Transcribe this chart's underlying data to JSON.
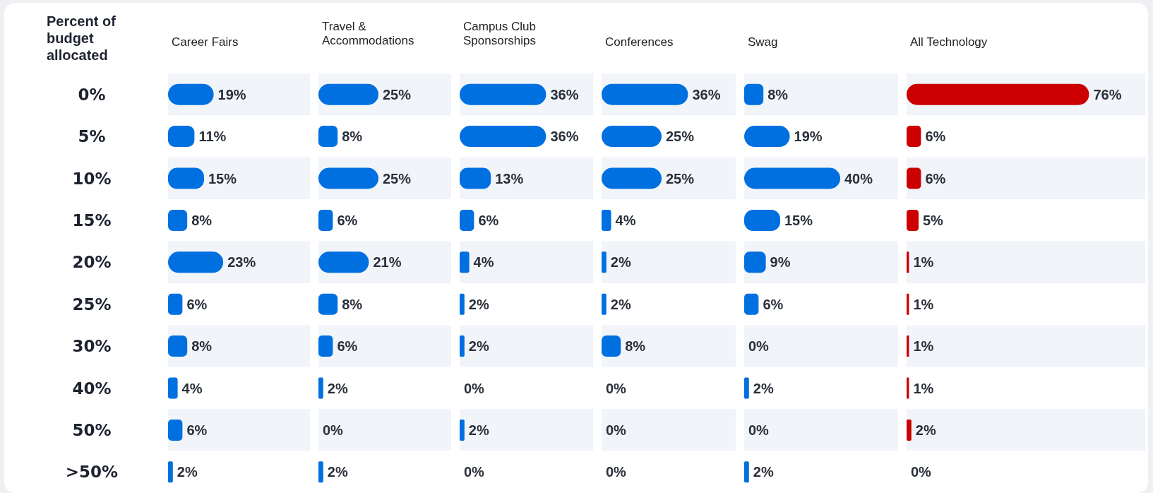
{
  "chart_data": [
    {
      "type": "bar",
      "orientation": "horizontal",
      "title": "Career Fairs",
      "ylabel": "Percent of budget allocated",
      "tick_labels": "y",
      "color": "#0070e0",
      "categories": [
        "0%",
        "5%",
        "10%",
        "15%",
        "20%",
        "25%",
        "30%",
        "40%",
        "50%",
        ">50%"
      ],
      "values": [
        19,
        11,
        15,
        8,
        23,
        6,
        8,
        4,
        6,
        2
      ],
      "value_labels": [
        "19%",
        "11%",
        "15%",
        "8%",
        "23%",
        "6%",
        "8%",
        "4%",
        "6%",
        "2%"
      ]
    },
    {
      "type": "bar",
      "orientation": "horizontal",
      "title": "Travel & Accommodations",
      "tick_labels": false,
      "color": "#0070e0",
      "categories": [
        null,
        null,
        null,
        null,
        null,
        null,
        null,
        null,
        null,
        null
      ],
      "values": [
        25,
        8,
        25,
        6,
        21,
        8,
        6,
        2,
        0,
        2
      ],
      "value_labels": [
        "25%",
        "8%",
        "25%",
        "6%",
        "21%",
        "8%",
        "6%",
        "2%",
        "0%",
        "2%"
      ]
    },
    {
      "type": "bar",
      "orientation": "horizontal",
      "title": "Campus Club Sponsorships",
      "tick_labels": false,
      "color": "#0070e0",
      "categories": [
        null,
        null,
        null,
        null,
        null,
        null,
        null,
        null,
        null,
        null
      ],
      "values": [
        36,
        36,
        13,
        6,
        4,
        2,
        2,
        0,
        2,
        0
      ],
      "value_labels": [
        "36%",
        "36%",
        "13%",
        "6%",
        "4%",
        "2%",
        "2%",
        "0%",
        "2%",
        "0%"
      ]
    },
    {
      "type": "bar",
      "orientation": "horizontal",
      "title": "Conferences",
      "tick_labels": false,
      "color": "#0070e0",
      "categories": [
        null,
        null,
        null,
        null,
        null,
        null,
        null,
        null,
        null,
        null
      ],
      "values": [
        36,
        25,
        25,
        4,
        2,
        2,
        8,
        0,
        0,
        0
      ],
      "value_labels": [
        "36%",
        "25%",
        "25%",
        "4%",
        "2%",
        "2%",
        "8%",
        "0%",
        "0%",
        "0%"
      ]
    },
    {
      "type": "bar",
      "orientation": "horizontal",
      "title": "Swag",
      "tick_labels": false,
      "color": "#0070e0",
      "categories": [
        null,
        null,
        null,
        null,
        null,
        null,
        null,
        null,
        null,
        null
      ],
      "values": [
        8,
        19,
        40,
        15,
        9,
        6,
        0,
        2,
        0,
        2
      ],
      "value_labels": [
        "8%",
        "19%",
        "40%",
        "15%",
        "9%",
        "6%",
        "0%",
        "2%",
        "0%",
        "2%"
      ]
    },
    {
      "type": "bar",
      "orientation": "horizontal",
      "title": "All Technology",
      "tick_labels": false,
      "color": "#cc0000",
      "categories": [
        null,
        null,
        null,
        null,
        null,
        null,
        null,
        null,
        null,
        null
      ],
      "values": [
        76,
        6,
        6,
        5,
        1,
        1,
        1,
        1,
        2,
        0
      ],
      "value_labels": [
        "76%",
        "6%",
        "6%",
        "5%",
        "1%",
        "1%",
        "1%",
        "1%",
        "2%",
        "0%"
      ]
    }
  ]
}
